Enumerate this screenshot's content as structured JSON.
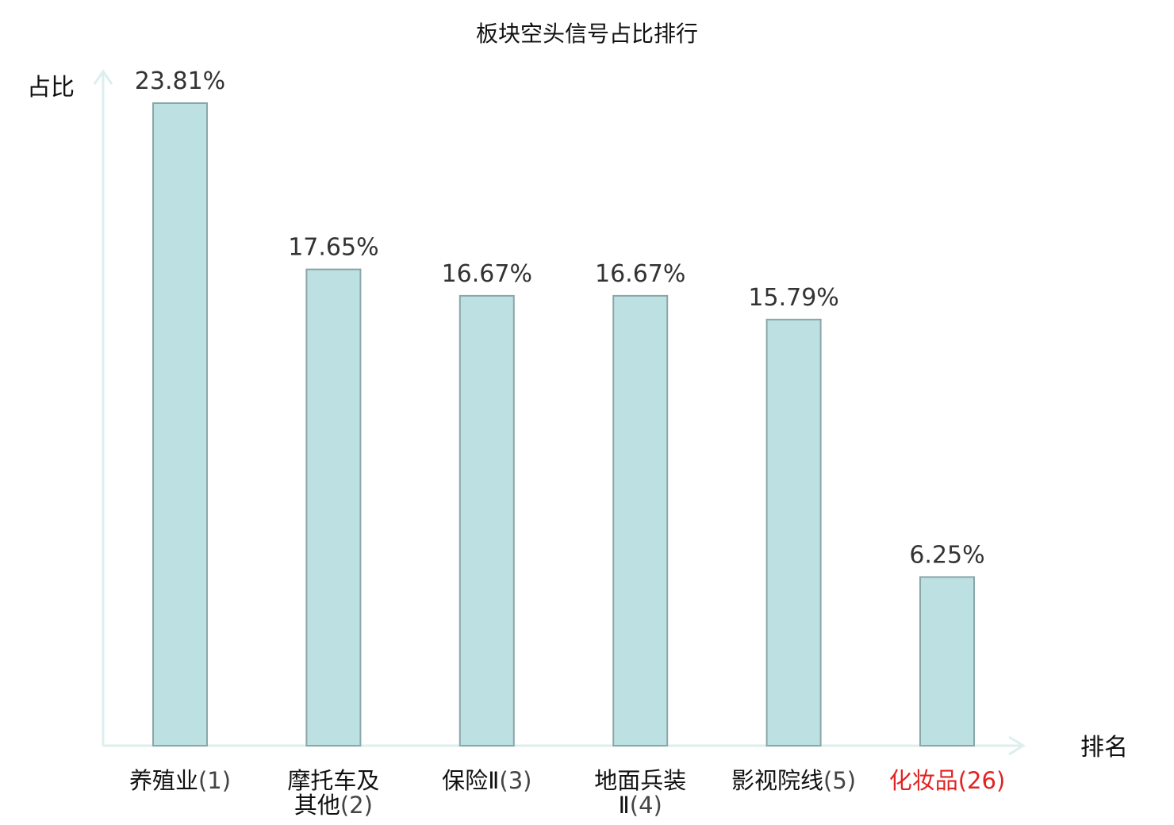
{
  "chart_data": {
    "type": "bar",
    "title": "板块空头信号占比排行",
    "ylabel": "占比",
    "xlabel": "排名",
    "ylim": [
      0,
      25
    ],
    "grid": false,
    "legend": "none",
    "categories": [
      {
        "lines": [
          {
            "name": "养殖业",
            "rank": "(1)"
          }
        ],
        "highlight": false
      },
      {
        "lines": [
          {
            "name": "摩托车及",
            "rank": ""
          },
          {
            "name": "其他",
            "rank": "(2)"
          }
        ],
        "highlight": false
      },
      {
        "lines": [
          {
            "name": "保险Ⅱ",
            "rank": "(3)"
          }
        ],
        "highlight": false
      },
      {
        "lines": [
          {
            "name": "地面兵装",
            "rank": ""
          },
          {
            "name": "Ⅱ",
            "rank": "(4)"
          }
        ],
        "highlight": false
      },
      {
        "lines": [
          {
            "name": "影视院线",
            "rank": "(5)"
          }
        ],
        "highlight": false
      },
      {
        "lines": [
          {
            "name": "化妆品",
            "rank": "(26)"
          }
        ],
        "highlight": true
      }
    ],
    "values": [
      23.81,
      17.65,
      16.67,
      16.67,
      15.79,
      6.25
    ],
    "value_labels": [
      "23.81%",
      "17.65%",
      "16.67%",
      "16.67%",
      "15.79%",
      "6.25%"
    ]
  },
  "colors": {
    "bar_fill": "#bde0e2",
    "bar_stroke": "#8aa7a8",
    "axis": "#dcefec",
    "highlight": "#e32222",
    "rank_text": "#444444",
    "name_text": "#111111"
  }
}
